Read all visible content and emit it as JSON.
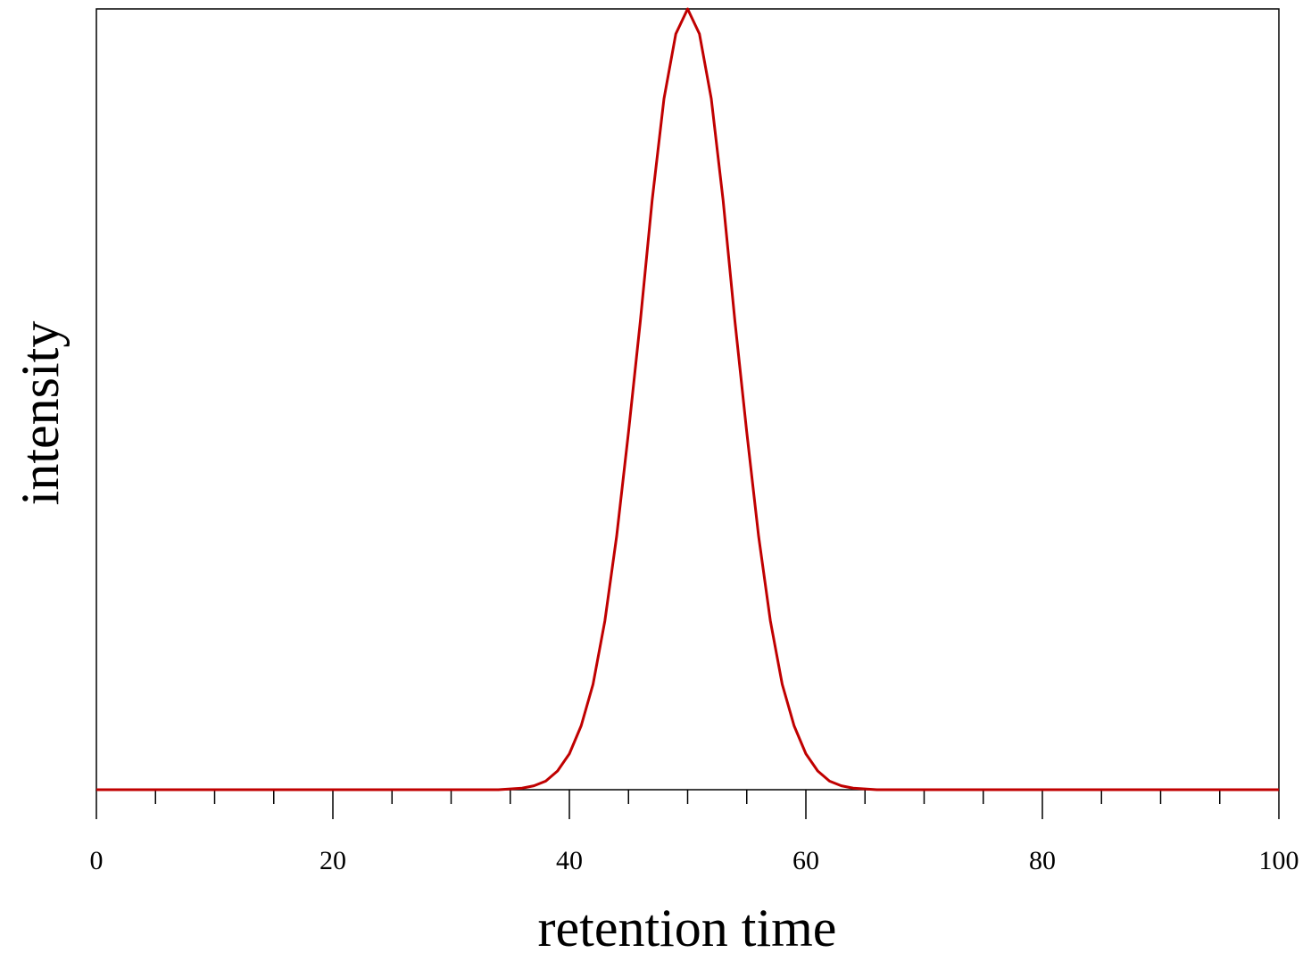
{
  "chart_data": {
    "type": "line",
    "xlabel": "retention time",
    "ylabel": "intensity",
    "xlim": [
      0,
      100
    ],
    "ylim": [
      0,
      1
    ],
    "x_major_ticks": [
      0,
      20,
      40,
      60,
      80,
      100
    ],
    "x_minor_step": 5,
    "y_ticks": [],
    "grid": false,
    "legend": "none",
    "series": [
      {
        "color": "#c00000",
        "x": [
          0,
          34,
          35,
          36,
          37,
          38,
          39,
          40,
          41,
          42,
          43,
          44,
          45,
          46,
          47,
          48,
          49,
          50,
          51,
          52,
          53,
          54,
          55,
          56,
          57,
          58,
          59,
          60,
          61,
          62,
          63,
          64,
          65,
          66,
          100
        ],
        "y": [
          0,
          0,
          0.001,
          0.002,
          0.005,
          0.011,
          0.024,
          0.046,
          0.082,
          0.135,
          0.216,
          0.325,
          0.458,
          0.6,
          0.755,
          0.885,
          0.968,
          1.0,
          0.968,
          0.885,
          0.755,
          0.6,
          0.458,
          0.325,
          0.216,
          0.135,
          0.082,
          0.046,
          0.024,
          0.011,
          0.005,
          0.002,
          0.001,
          0,
          0
        ]
      }
    ]
  }
}
